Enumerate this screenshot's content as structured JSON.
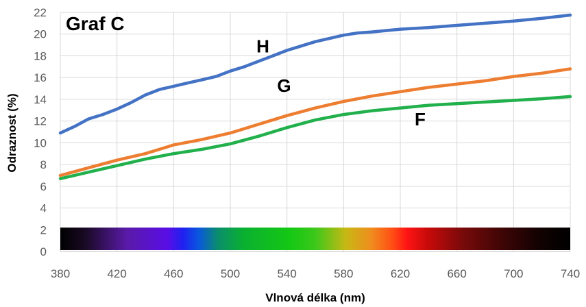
{
  "chart_data": {
    "type": "line",
    "title": "Graf C",
    "xlabel": "Vlnová délka (nm)",
    "ylabel": "Odraznost (%)",
    "xlim": [
      380,
      740
    ],
    "ylim": [
      0,
      22
    ],
    "x_ticks": [
      380,
      420,
      460,
      500,
      540,
      580,
      620,
      660,
      700,
      740
    ],
    "y_ticks": [
      0,
      2,
      4,
      6,
      8,
      10,
      12,
      14,
      16,
      18,
      20,
      22
    ],
    "grid": true,
    "legend": "none",
    "spectrum_band": {
      "from": 380,
      "to": 740,
      "ylim": [
        0,
        2.2
      ]
    },
    "series": [
      {
        "name": "H",
        "color": "#4472C4",
        "x": [
          380,
          390,
          400,
          410,
          420,
          430,
          440,
          450,
          460,
          470,
          480,
          490,
          500,
          510,
          520,
          530,
          540,
          550,
          560,
          570,
          580,
          590,
          600,
          620,
          640,
          660,
          680,
          700,
          720,
          740
        ],
        "y": [
          10.9,
          11.5,
          12.2,
          12.6,
          13.1,
          13.7,
          14.4,
          14.9,
          15.2,
          15.5,
          15.8,
          16.1,
          16.6,
          17.0,
          17.5,
          18.0,
          18.5,
          18.9,
          19.3,
          19.6,
          19.9,
          20.1,
          20.2,
          20.45,
          20.6,
          20.8,
          21.0,
          21.2,
          21.45,
          21.75
        ]
      },
      {
        "name": "G",
        "color": "#ED7D31",
        "x": [
          380,
          400,
          420,
          440,
          450,
          460,
          480,
          500,
          520,
          540,
          560,
          580,
          600,
          620,
          640,
          660,
          680,
          700,
          720,
          740
        ],
        "y": [
          7.0,
          7.7,
          8.4,
          9.0,
          9.4,
          9.8,
          10.3,
          10.9,
          11.7,
          12.5,
          13.2,
          13.8,
          14.3,
          14.7,
          15.1,
          15.4,
          15.7,
          16.1,
          16.4,
          16.8
        ]
      },
      {
        "name": "F",
        "color": "#21B04B",
        "x": [
          380,
          400,
          420,
          440,
          460,
          480,
          500,
          520,
          540,
          560,
          580,
          600,
          620,
          640,
          660,
          680,
          700,
          720,
          740
        ],
        "y": [
          6.7,
          7.3,
          7.9,
          8.5,
          9.0,
          9.4,
          9.9,
          10.6,
          11.4,
          12.1,
          12.6,
          12.95,
          13.2,
          13.45,
          13.6,
          13.75,
          13.9,
          14.05,
          14.25
        ]
      }
    ],
    "series_labels": [
      {
        "text": "H",
        "x": 523,
        "y": 18.3
      },
      {
        "text": "G",
        "x": 538,
        "y": 14.7
      },
      {
        "text": "F",
        "x": 634,
        "y": 11.6
      }
    ]
  },
  "colors": {
    "grid": "#D9D9D9",
    "axis": "#BFBFBF"
  }
}
